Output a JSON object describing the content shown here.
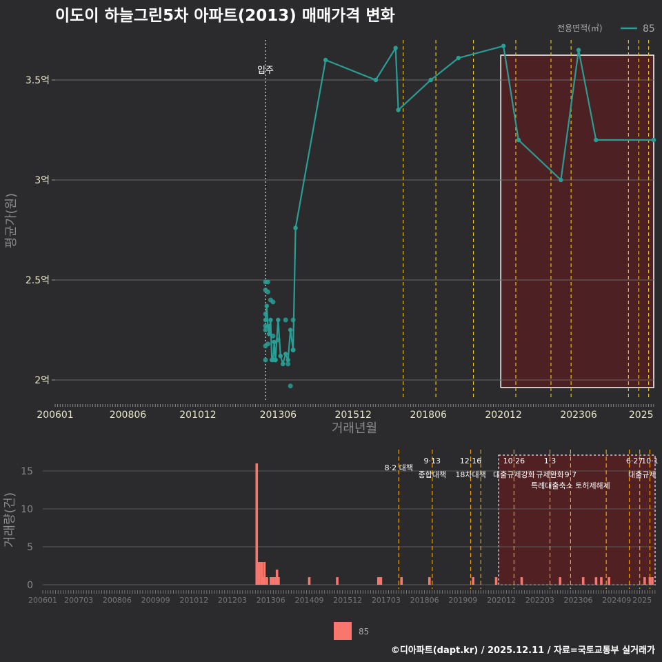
{
  "title": "이도이 하늘그린5차 아파트(2013) 매매가격 변화",
  "legend_title": "전용면적(㎡)",
  "legend_item": "85",
  "bottom_legend_item": "85",
  "credit": "©디아파트(dapt.kr) / 2025.12.11 / 자료=국토교통부 실거래가",
  "colors": {
    "line": "#2a9d94",
    "bar": "#f8766d",
    "shade": "#5a1e20",
    "policy": "#e6c21a",
    "policy2": "#f0a000"
  },
  "chart_data": [
    {
      "type": "line",
      "title": "이도이 하늘그린5차 아파트(2013) 매매가격 변화",
      "xlabel": "거래년월",
      "ylabel": "평균가(원)",
      "x_domain": [
        2006.0,
        2025.92
      ],
      "ylim": [
        1.9,
        3.7
      ],
      "y_ticks": [
        {
          "v": 2.0,
          "label": "2억"
        },
        {
          "v": 2.5,
          "label": "2.5억"
        },
        {
          "v": 3.0,
          "label": "3억"
        },
        {
          "v": 3.5,
          "label": "3.5억"
        }
      ],
      "x_ticks": [
        {
          "v": 2006.0,
          "label": "200601"
        },
        {
          "v": 2008.42,
          "label": "200806"
        },
        {
          "v": 2010.75,
          "label": "201012"
        },
        {
          "v": 2013.42,
          "label": "201306"
        },
        {
          "v": 2015.92,
          "label": "201512"
        },
        {
          "v": 2018.42,
          "label": "201806"
        },
        {
          "v": 2020.92,
          "label": "202012"
        },
        {
          "v": 2023.42,
          "label": "202306"
        },
        {
          "v": 2025.5,
          "label": "2025"
        }
      ],
      "move_in": {
        "x": 2013.0,
        "label": "입주"
      },
      "series": [
        {
          "name": "85",
          "x": [
            2013.0,
            2013.04,
            2013.08,
            2013.12,
            2013.17,
            2013.21,
            2013.25,
            2013.29,
            2013.33,
            2013.42,
            2013.5,
            2013.58,
            2013.67,
            2013.75,
            2013.83,
            2013.92,
            2014.0,
            2015.0,
            2016.67,
            2017.33,
            2017.42,
            2018.5,
            2019.42,
            2020.92,
            2021.42,
            2022.83,
            2023.42,
            2024.0,
            2025.92
          ],
          "values": [
            2.3,
            2.37,
            2.27,
            2.23,
            2.3,
            2.1,
            2.1,
            2.19,
            2.1,
            2.3,
            2.12,
            2.08,
            2.13,
            2.1,
            2.25,
            2.15,
            2.76,
            3.6,
            3.5,
            3.66,
            3.35,
            3.5,
            3.61,
            3.67,
            3.2,
            3.0,
            3.65,
            3.2,
            3.2
          ]
        }
      ],
      "scatter": {
        "x": [
          2013.0,
          2013.0,
          2013.0,
          2013.0,
          2013.0,
          2013.0,
          2013.0,
          2013.08,
          2013.08,
          2013.08,
          2013.17,
          2013.25,
          2013.25,
          2013.33,
          2013.42,
          2013.67,
          2013.75,
          2013.83,
          2013.92,
          2013.92
        ],
        "values": [
          2.49,
          2.45,
          2.33,
          2.27,
          2.25,
          2.17,
          2.1,
          2.49,
          2.44,
          2.18,
          2.4,
          2.39,
          2.22,
          2.1,
          2.2,
          2.3,
          2.08,
          1.97,
          2.3,
          2.15
        ]
      },
      "policy_lines": [
        2017.58,
        2018.67,
        2019.92,
        2021.33,
        2022.5,
        2023.17,
        2025.08,
        2025.42,
        2025.75
      ],
      "shade": {
        "from": 2020.83,
        "to": 2025.92
      }
    },
    {
      "type": "bar",
      "ylabel": "거래량(건)",
      "ylim": [
        0,
        16
      ],
      "y_ticks": [
        {
          "v": 0,
          "label": "0"
        },
        {
          "v": 5,
          "label": "5"
        },
        {
          "v": 10,
          "label": "10"
        },
        {
          "v": 15,
          "label": "15"
        }
      ],
      "x_ticks": [
        {
          "v": 2006.0,
          "label": "200601"
        },
        {
          "v": 2007.17,
          "label": "200703"
        },
        {
          "v": 2008.42,
          "label": "200806"
        },
        {
          "v": 2009.67,
          "label": "200909"
        },
        {
          "v": 2010.92,
          "label": "201012"
        },
        {
          "v": 2012.17,
          "label": "201203"
        },
        {
          "v": 2013.42,
          "label": "201306"
        },
        {
          "v": 2014.67,
          "label": "201409"
        },
        {
          "v": 2015.92,
          "label": "201512"
        },
        {
          "v": 2017.17,
          "label": "201703"
        },
        {
          "v": 2018.42,
          "label": "201806"
        },
        {
          "v": 2019.67,
          "label": "201909"
        },
        {
          "v": 2020.92,
          "label": "202012"
        },
        {
          "v": 2022.17,
          "label": "202203"
        },
        {
          "v": 2023.42,
          "label": "202306"
        },
        {
          "v": 2024.67,
          "label": "202409"
        },
        {
          "v": 2025.5,
          "label": "2025"
        }
      ],
      "x": [
        2012.96,
        2013.04,
        2013.12,
        2013.17,
        2013.21,
        2013.29,
        2013.42,
        2013.5,
        2013.58,
        2013.62,
        2013.67,
        2014.67,
        2015.58,
        2016.92,
        2017.0,
        2017.67,
        2018.58,
        2020.0,
        2020.75,
        2021.58,
        2022.83,
        2023.58,
        2024.0,
        2024.17,
        2024.42,
        2025.58,
        2025.75,
        2025.83
      ],
      "values": [
        16,
        3,
        3,
        1,
        3,
        1,
        1,
        1,
        1,
        2,
        1,
        1,
        1,
        1,
        1,
        1,
        1,
        1,
        1,
        1,
        1,
        1,
        1,
        1,
        1,
        1,
        1,
        1
      ],
      "policy_lines": [
        2017.58,
        2018.67,
        2019.92,
        2020.25,
        2021.33,
        2022.5,
        2023.17,
        2024.33,
        2025.08,
        2025.42,
        2025.75
      ],
      "shade": {
        "from": 2020.83,
        "to": 2025.92
      },
      "annotations": [
        {
          "x": 2017.58,
          "row": 0,
          "label": "8·2 대책"
        },
        {
          "x": 2018.67,
          "row": -1,
          "label": "9·13"
        },
        {
          "x": 2018.67,
          "row": 1,
          "label": "종합대책"
        },
        {
          "x": 2019.92,
          "row": -1,
          "label": "12·16"
        },
        {
          "x": 2019.92,
          "row": 1,
          "label": "18차대책"
        },
        {
          "x": 2021.33,
          "row": -1,
          "label": "10·26"
        },
        {
          "x": 2021.33,
          "row": 1,
          "label": "대출규제강화"
        },
        {
          "x": 2022.5,
          "row": -1,
          "label": "1·3"
        },
        {
          "x": 2022.5,
          "row": 1,
          "label": "규제완화"
        },
        {
          "x": 2023.17,
          "row": 1,
          "label": "9·7"
        },
        {
          "x": 2023.17,
          "row": 2,
          "label": "특례대출축소 토허제해제"
        },
        {
          "x": 2025.25,
          "row": -1,
          "label": "6·27"
        },
        {
          "x": 2025.75,
          "row": -1,
          "label": "10·1"
        },
        {
          "x": 2025.5,
          "row": 1,
          "label": "대출규제"
        }
      ]
    }
  ]
}
